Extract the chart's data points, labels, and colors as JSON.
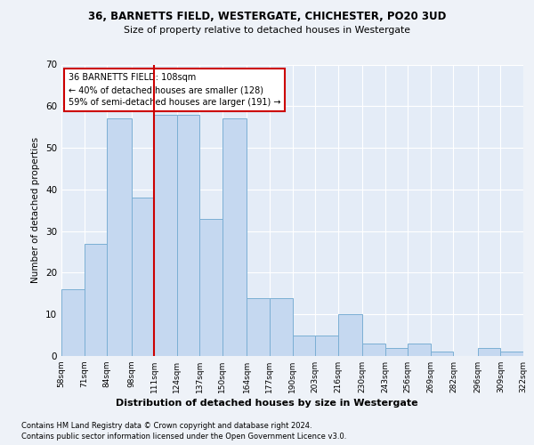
{
  "title1": "36, BARNETTS FIELD, WESTERGATE, CHICHESTER, PO20 3UD",
  "title2": "Size of property relative to detached houses in Westergate",
  "xlabel": "Distribution of detached houses by size in Westergate",
  "ylabel": "Number of detached properties",
  "bin_labels": [
    "58sqm",
    "71sqm",
    "84sqm",
    "98sqm",
    "111sqm",
    "124sqm",
    "137sqm",
    "150sqm",
    "164sqm",
    "177sqm",
    "190sqm",
    "203sqm",
    "216sqm",
    "230sqm",
    "243sqm",
    "256sqm",
    "269sqm",
    "282sqm",
    "296sqm",
    "309sqm",
    "322sqm"
  ],
  "bar_values": [
    16,
    27,
    57,
    38,
    58,
    58,
    33,
    57,
    14,
    14,
    5,
    5,
    10,
    3,
    2,
    3,
    1,
    0,
    2,
    1,
    1
  ],
  "bar_color": "#c5d8f0",
  "bar_edgecolor": "#7bafd4",
  "vline_x": 111,
  "vline_color": "#cc0000",
  "annotation_title": "36 BARNETTS FIELD: 108sqm",
  "annotation_line1": "← 40% of detached houses are smaller (128)",
  "annotation_line2": "59% of semi-detached houses are larger (191) →",
  "annotation_box_facecolor": "#ffffff",
  "annotation_box_edgecolor": "#cc0000",
  "ylim": [
    0,
    70
  ],
  "yticks": [
    0,
    10,
    20,
    30,
    40,
    50,
    60,
    70
  ],
  "footnote1": "Contains HM Land Registry data © Crown copyright and database right 2024.",
  "footnote2": "Contains public sector information licensed under the Open Government Licence v3.0.",
  "bg_color": "#eef2f8",
  "plot_bg_color": "#e4ecf7"
}
